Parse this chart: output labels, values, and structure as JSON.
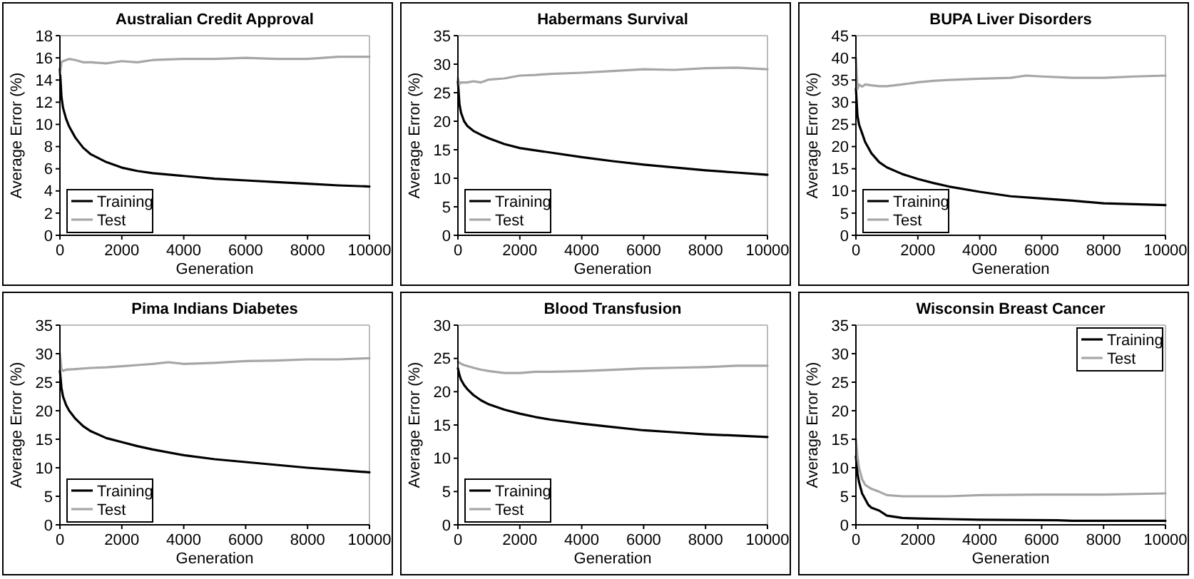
{
  "chart_data": [
    {
      "type": "line",
      "title": "Australian Credit Approval",
      "xlabel": "Generation",
      "ylabel": "Average Error (%)",
      "xlim": [
        0,
        10000
      ],
      "xticks": [
        0,
        2000,
        4000,
        6000,
        8000,
        10000
      ],
      "ylim": [
        0,
        18
      ],
      "yticks": [
        0,
        2,
        4,
        6,
        8,
        10,
        12,
        14,
        16,
        18
      ],
      "legend": "bottom left",
      "series": [
        {
          "name": "Training",
          "color": "#000000",
          "x": [
            0,
            50,
            100,
            200,
            300,
            500,
            750,
            1000,
            1500,
            2000,
            2500,
            3000,
            4000,
            5000,
            6000,
            7000,
            8000,
            9000,
            10000
          ],
          "values": [
            15,
            12.5,
            11.5,
            10.5,
            9.8,
            8.8,
            7.9,
            7.3,
            6.6,
            6.1,
            5.8,
            5.6,
            5.35,
            5.1,
            4.95,
            4.8,
            4.65,
            4.5,
            4.4
          ]
        },
        {
          "name": "Test",
          "color": "#a6a6a6",
          "x": [
            0,
            50,
            100,
            200,
            300,
            500,
            750,
            1000,
            1500,
            2000,
            2500,
            3000,
            4000,
            5000,
            6000,
            7000,
            8000,
            9000,
            10000
          ],
          "values": [
            14.5,
            15.6,
            15.7,
            15.8,
            15.9,
            15.8,
            15.6,
            15.6,
            15.5,
            15.7,
            15.6,
            15.8,
            15.9,
            15.9,
            16,
            15.9,
            15.9,
            16.1,
            16.1
          ]
        }
      ]
    },
    {
      "type": "line",
      "title": "Habermans Survival",
      "xlabel": "Generation",
      "ylabel": "Average Error (%)",
      "xlim": [
        0,
        10000
      ],
      "xticks": [
        0,
        2000,
        4000,
        6000,
        8000,
        10000
      ],
      "ylim": [
        0,
        35
      ],
      "yticks": [
        0,
        5,
        10,
        15,
        20,
        25,
        30,
        35
      ],
      "legend": "bottom left",
      "series": [
        {
          "name": "Training",
          "color": "#000000",
          "x": [
            0,
            50,
            100,
            200,
            300,
            500,
            750,
            1000,
            1500,
            2000,
            2500,
            3000,
            4000,
            5000,
            6000,
            7000,
            8000,
            9000,
            10000
          ],
          "values": [
            27,
            23,
            21.5,
            20,
            19.2,
            18.3,
            17.6,
            17,
            16,
            15.3,
            14.9,
            14.5,
            13.7,
            13,
            12.4,
            11.9,
            11.4,
            11,
            10.6
          ]
        },
        {
          "name": "Test",
          "color": "#a6a6a6",
          "x": [
            0,
            50,
            100,
            200,
            300,
            500,
            750,
            1000,
            1500,
            2000,
            2500,
            3000,
            4000,
            5000,
            6000,
            7000,
            8000,
            9000,
            10000
          ],
          "values": [
            27.5,
            26.5,
            26.8,
            26.8,
            26.8,
            27,
            26.8,
            27.3,
            27.5,
            28,
            28.1,
            28.3,
            28.5,
            28.8,
            29.1,
            29,
            29.3,
            29.4,
            29.1
          ]
        }
      ]
    },
    {
      "type": "line",
      "title": "BUPA Liver Disorders",
      "xlabel": "Generation",
      "ylabel": "Average Error (%)",
      "xlim": [
        0,
        10000
      ],
      "xticks": [
        0,
        2000,
        4000,
        6000,
        8000,
        10000
      ],
      "ylim": [
        0,
        45
      ],
      "yticks": [
        0,
        5,
        10,
        15,
        20,
        25,
        30,
        35,
        40,
        45
      ],
      "legend": "bottom left",
      "series": [
        {
          "name": "Training",
          "color": "#000000",
          "x": [
            0,
            50,
            100,
            200,
            300,
            500,
            750,
            1000,
            1500,
            2000,
            2500,
            3000,
            4000,
            5000,
            6000,
            7000,
            8000,
            9000,
            10000
          ],
          "values": [
            33,
            27,
            25,
            23,
            21,
            18.5,
            16.5,
            15.3,
            13.8,
            12.7,
            11.8,
            11,
            9.8,
            8.8,
            8.3,
            7.8,
            7.2,
            7,
            6.8
          ]
        },
        {
          "name": "Test",
          "color": "#a6a6a6",
          "x": [
            0,
            50,
            100,
            200,
            300,
            500,
            750,
            1000,
            1500,
            2000,
            2500,
            3000,
            4000,
            5000,
            5500,
            6000,
            7000,
            8000,
            9000,
            10000
          ],
          "values": [
            40,
            33,
            34,
            33.5,
            34,
            33.8,
            33.6,
            33.6,
            34,
            34.5,
            34.8,
            35,
            35.3,
            35.5,
            36,
            35.8,
            35.5,
            35.5,
            35.8,
            36
          ]
        }
      ]
    },
    {
      "type": "line",
      "title": "Pima Indians Diabetes",
      "xlabel": "Generation",
      "ylabel": "Average Error (%)",
      "xlim": [
        0,
        10000
      ],
      "xticks": [
        0,
        2000,
        4000,
        6000,
        8000,
        10000
      ],
      "ylim": [
        0,
        35
      ],
      "yticks": [
        0,
        5,
        10,
        15,
        20,
        25,
        30,
        35
      ],
      "legend": "bottom left",
      "series": [
        {
          "name": "Training",
          "color": "#000000",
          "x": [
            0,
            50,
            100,
            200,
            300,
            500,
            750,
            1000,
            1500,
            2000,
            2500,
            3000,
            4000,
            5000,
            6000,
            7000,
            8000,
            9000,
            10000
          ],
          "values": [
            27,
            24,
            22.5,
            21,
            20,
            18.6,
            17.3,
            16.4,
            15.2,
            14.5,
            13.8,
            13.2,
            12.2,
            11.5,
            11,
            10.5,
            10,
            9.6,
            9.2
          ]
        },
        {
          "name": "Test",
          "color": "#a6a6a6",
          "x": [
            0,
            50,
            100,
            200,
            500,
            1000,
            1500,
            2000,
            2500,
            3000,
            3500,
            4000,
            5000,
            6000,
            7000,
            8000,
            9000,
            10000
          ],
          "values": [
            30,
            27.3,
            27,
            27.2,
            27.3,
            27.5,
            27.6,
            27.8,
            28,
            28.2,
            28.5,
            28.2,
            28.4,
            28.7,
            28.8,
            29,
            29,
            29.2
          ]
        }
      ]
    },
    {
      "type": "line",
      "title": "Blood Transfusion",
      "xlabel": "Generation",
      "ylabel": "Average Error (%)",
      "xlim": [
        0,
        10000
      ],
      "xticks": [
        0,
        2000,
        4000,
        6000,
        8000,
        10000
      ],
      "ylim": [
        0,
        30
      ],
      "yticks": [
        0,
        5,
        10,
        15,
        20,
        25,
        30
      ],
      "legend": "bottom left",
      "series": [
        {
          "name": "Training",
          "color": "#000000",
          "x": [
            0,
            50,
            100,
            200,
            300,
            500,
            750,
            1000,
            1500,
            2000,
            2500,
            3000,
            4000,
            5000,
            6000,
            7000,
            8000,
            9000,
            10000
          ],
          "values": [
            23.5,
            22.5,
            21.8,
            21,
            20.4,
            19.5,
            18.7,
            18.1,
            17.3,
            16.7,
            16.2,
            15.8,
            15.2,
            14.7,
            14.2,
            13.9,
            13.6,
            13.4,
            13.2
          ]
        },
        {
          "name": "Test",
          "color": "#a6a6a6",
          "x": [
            0,
            100,
            200,
            500,
            750,
            1000,
            1500,
            2000,
            2500,
            3000,
            4000,
            5000,
            6000,
            7000,
            8000,
            9000,
            10000
          ],
          "values": [
            24.5,
            24.2,
            24,
            23.6,
            23.3,
            23.1,
            22.8,
            22.8,
            23,
            23,
            23.1,
            23.3,
            23.5,
            23.6,
            23.7,
            23.9,
            23.9
          ]
        }
      ]
    },
    {
      "type": "line",
      "title": "Wisconsin Breast Cancer",
      "xlabel": "Generation",
      "ylabel": "Average Error (%)",
      "xlim": [
        0,
        10000
      ],
      "xticks": [
        0,
        2000,
        4000,
        6000,
        8000,
        10000
      ],
      "ylim": [
        0,
        35
      ],
      "yticks": [
        0,
        5,
        10,
        15,
        20,
        25,
        30,
        35
      ],
      "legend": "top right",
      "series": [
        {
          "name": "Training",
          "color": "#000000",
          "x": [
            0,
            50,
            100,
            200,
            300,
            400,
            500,
            750,
            1000,
            1500,
            2000,
            3000,
            4000,
            6500,
            7000,
            10000
          ],
          "values": [
            12,
            9,
            7.5,
            5.5,
            4.5,
            3.5,
            3,
            2.5,
            1.6,
            1.2,
            1.1,
            1,
            0.9,
            0.8,
            0.7,
            0.7
          ]
        },
        {
          "name": "Test",
          "color": "#a6a6a6",
          "x": [
            0,
            50,
            100,
            200,
            300,
            500,
            750,
            1000,
            1500,
            2000,
            3000,
            4000,
            6000,
            8000,
            10000
          ],
          "values": [
            15,
            12,
            10,
            8,
            7,
            6.3,
            5.8,
            5.2,
            5,
            5,
            5,
            5.2,
            5.3,
            5.3,
            5.5
          ]
        }
      ]
    }
  ]
}
